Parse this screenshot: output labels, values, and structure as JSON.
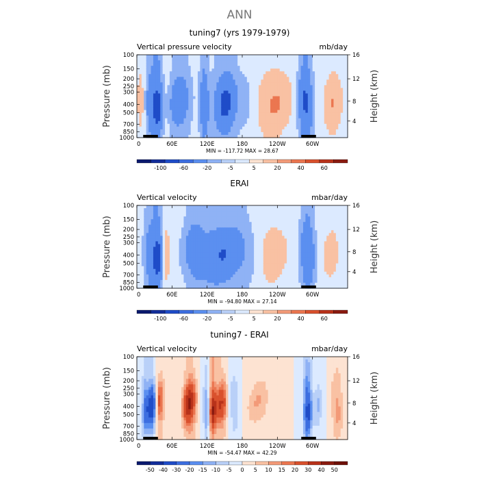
{
  "figure_title": "ANN",
  "chart_data": [
    {
      "type": "heatmap",
      "title": "tuning7 (yrs 1979-1979)",
      "left_label": "Vertical pressure velocity",
      "right_label": "mb/day",
      "ylabel": "Pressure (mb)",
      "y2label": "Height (km)",
      "x_ticks": [
        "0",
        "60E",
        "120E",
        "180",
        "120W",
        "60W"
      ],
      "y_ticks": [
        "100",
        "150",
        "200",
        "250",
        "300",
        "400",
        "500",
        "700",
        "850",
        "1000"
      ],
      "y2_ticks": [
        "16",
        "12",
        "8",
        "4"
      ],
      "stats": "MIN = -117.72   MAX =  28.67",
      "levels": [
        "-100",
        "-60",
        "-20",
        "-5",
        "5",
        "20",
        "40",
        "60"
      ],
      "colormap": [
        "#0b1a6e",
        "#132e9a",
        "#1f4cc8",
        "#3d6ee0",
        "#5b8ff0",
        "#8fb2f5",
        "#b9d0f8",
        "#dceaff",
        "#fde3d2",
        "#f9c1a3",
        "#f39a78",
        "#eb7650",
        "#d9512d",
        "#b8321a",
        "#8a1b10"
      ]
    },
    {
      "type": "heatmap",
      "title": "ERAI",
      "left_label": "Vertical velocity",
      "right_label": "mbar/day",
      "ylabel": "Pressure (mb)",
      "y2label": "Height (km)",
      "x_ticks": [
        "0",
        "60E",
        "120E",
        "180",
        "120W",
        "60W"
      ],
      "y_ticks": [
        "100",
        "150",
        "200",
        "250",
        "300",
        "400",
        "500",
        "700",
        "850",
        "1000"
      ],
      "y2_ticks": [
        "16",
        "12",
        "8",
        "4"
      ],
      "stats": "MIN = -94.80   MAX =  27.14",
      "levels": [
        "-100",
        "-60",
        "-20",
        "-5",
        "5",
        "20",
        "40",
        "60"
      ],
      "colormap": [
        "#0b1a6e",
        "#132e9a",
        "#1f4cc8",
        "#3d6ee0",
        "#5b8ff0",
        "#8fb2f5",
        "#b9d0f8",
        "#dceaff",
        "#fde3d2",
        "#f9c1a3",
        "#f39a78",
        "#eb7650",
        "#d9512d",
        "#b8321a",
        "#8a1b10"
      ]
    },
    {
      "type": "heatmap",
      "title": "tuning7 - ERAI",
      "left_label": "Vertical velocity",
      "right_label": "mbar/day",
      "ylabel": "Pressure (mb)",
      "y2label": "Height (km)",
      "x_ticks": [
        "0",
        "60E",
        "120E",
        "180",
        "120W",
        "60W"
      ],
      "y_ticks": [
        "100",
        "150",
        "200",
        "250",
        "300",
        "400",
        "500",
        "700",
        "850",
        "1000"
      ],
      "y2_ticks": [
        "16",
        "12",
        "8",
        "4"
      ],
      "stats": "MIN = -54.47   MAX =  42.29",
      "levels": [
        "-50",
        "-40",
        "-30",
        "-20",
        "-15",
        "-10",
        "-5",
        "0",
        "5",
        "10",
        "15",
        "20",
        "30",
        "40",
        "50"
      ],
      "colormap": [
        "#0b1a6e",
        "#132e9a",
        "#1f4cc8",
        "#3d6ee0",
        "#5b8ff0",
        "#8fb2f5",
        "#b9d0f8",
        "#dceaff",
        "#fde3d2",
        "#f9c1a3",
        "#f39a78",
        "#eb7650",
        "#d9512d",
        "#b8321a",
        "#8a1b10",
        "#6e1108"
      ]
    }
  ]
}
